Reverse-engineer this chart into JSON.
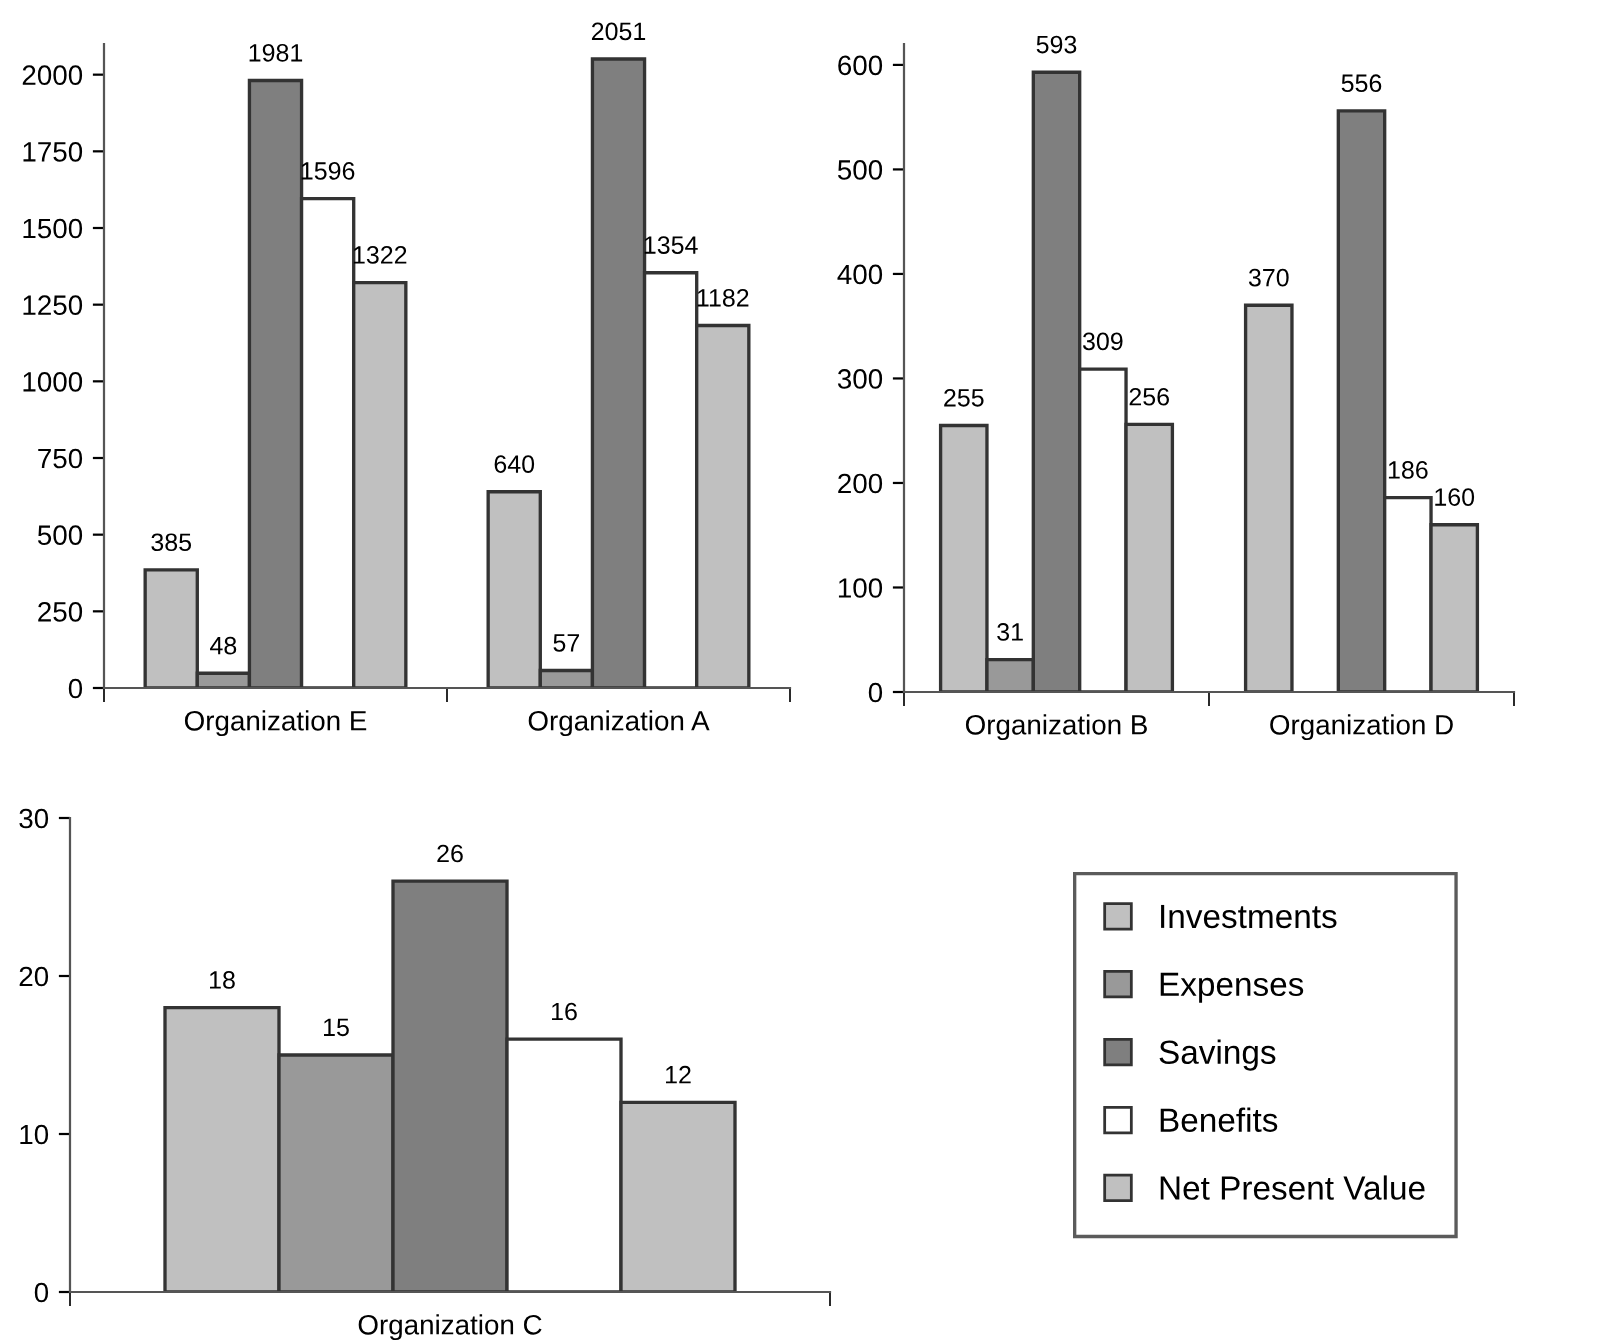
{
  "chart_data": [
    {
      "type": "bar",
      "categories": [
        "Organization E",
        "Organization A"
      ],
      "series": [
        {
          "color": "#c0c0c0",
          "values": [
            385,
            640
          ]
        },
        {
          "color": "#999999",
          "values": [
            48,
            57
          ]
        },
        {
          "color": "#7f7f7f",
          "values": [
            1981,
            2051
          ]
        },
        {
          "color": "#ffffff",
          "values": [
            1596,
            1354
          ]
        },
        {
          "color": "#c0c0c0",
          "values": [
            1322,
            1182
          ]
        }
      ],
      "ylim": [
        0,
        2100
      ],
      "yticks": [
        0,
        250,
        500,
        750,
        1000,
        1250,
        1500,
        1750,
        2000
      ],
      "data_labels": true,
      "grid": false,
      "legend": false
    },
    {
      "type": "bar",
      "categories": [
        "Organization B",
        "Organization D"
      ],
      "series": [
        {
          "color": "#c0c0c0",
          "values": [
            255,
            370
          ]
        },
        {
          "color": "#999999",
          "values": [
            31,
            null
          ]
        },
        {
          "color": "#7f7f7f",
          "values": [
            593,
            556
          ]
        },
        {
          "color": "#ffffff",
          "values": [
            309,
            186
          ]
        },
        {
          "color": "#c0c0c0",
          "values": [
            256,
            160
          ]
        }
      ],
      "ylim": [
        0,
        620
      ],
      "yticks": [
        0,
        100,
        200,
        300,
        400,
        500,
        600
      ],
      "data_labels": true,
      "grid": false,
      "legend": false
    },
    {
      "type": "bar",
      "categories": [
        "Organization C"
      ],
      "series": [
        {
          "name": "Investments",
          "color": "#c0c0c0",
          "values": [
            18
          ]
        },
        {
          "name": "Expenses",
          "color": "#999999",
          "values": [
            15
          ]
        },
        {
          "name": "Savings",
          "color": "#7f7f7f",
          "values": [
            26
          ]
        },
        {
          "name": "Benefits",
          "color": "#ffffff",
          "values": [
            16
          ]
        },
        {
          "name": "Net Present Value",
          "color": "#c0c0c0",
          "values": [
            12
          ]
        }
      ],
      "ylim": [
        0,
        30
      ],
      "yticks": [
        0,
        10,
        20,
        30
      ],
      "data_labels": true,
      "grid": false,
      "legend": "right"
    }
  ]
}
